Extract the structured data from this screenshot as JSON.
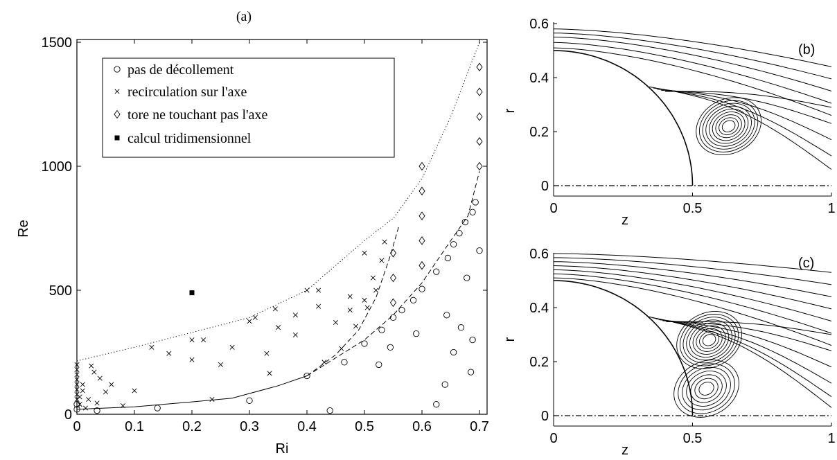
{
  "chart_data": [
    {
      "panel": "(a)",
      "type": "scatter",
      "title": "(a)",
      "xlabel": "Ri",
      "ylabel": "Re",
      "xlim": [
        0,
        0.7
      ],
      "ylim": [
        0,
        1500
      ],
      "xticks": [
        "0",
        "0.1",
        "0.2",
        "0.3",
        "0.4",
        "0.5",
        "0.6",
        "0.7"
      ],
      "yticks": [
        "0",
        "500",
        "1000",
        "1500"
      ],
      "legend_position": "top-left",
      "legend": [
        "pas de décollement",
        "recirculation sur l'axe",
        "tore ne touchant pas l'axe",
        "calcul tridimensionnel"
      ],
      "series": [
        {
          "name": "pas de décollement",
          "marker": "circle",
          "points": [
            [
              0,
              20
            ],
            [
              0,
              40
            ],
            [
              0.035,
              15
            ],
            [
              0.14,
              25
            ],
            [
              0.3,
              55
            ],
            [
              0.4,
              155
            ],
            [
              0.44,
              15
            ],
            [
              0.465,
              210
            ],
            [
              0.5,
              285
            ],
            [
              0.525,
              200
            ],
            [
              0.53,
              340
            ],
            [
              0.545,
              270
            ],
            [
              0.55,
              390
            ],
            [
              0.565,
              420
            ],
            [
              0.585,
              460
            ],
            [
              0.59,
              325
            ],
            [
              0.6,
              505
            ],
            [
              0.625,
              40
            ],
            [
              0.625,
              575
            ],
            [
              0.64,
              120
            ],
            [
              0.643,
              400
            ],
            [
              0.645,
              630
            ],
            [
              0.655,
              250
            ],
            [
              0.655,
              685
            ],
            [
              0.665,
              730
            ],
            [
              0.668,
              350
            ],
            [
              0.675,
              775
            ],
            [
              0.678,
              550
            ],
            [
              0.685,
              170
            ],
            [
              0.688,
              300
            ],
            [
              0.688,
              815
            ],
            [
              0.693,
              855
            ],
            [
              0.7,
              660
            ]
          ]
        },
        {
          "name": "recirculation sur l'axe",
          "marker": "x",
          "points": [
            [
              0,
              60
            ],
            [
              0,
              80
            ],
            [
              0,
              100
            ],
            [
              0,
              120
            ],
            [
              0,
              140
            ],
            [
              0,
              160
            ],
            [
              0,
              180
            ],
            [
              0,
              200
            ],
            [
              0.005,
              40
            ],
            [
              0.005,
              70
            ],
            [
              0.01,
              95
            ],
            [
              0.01,
              120
            ],
            [
              0.015,
              25
            ],
            [
              0.02,
              60
            ],
            [
              0.025,
              195
            ],
            [
              0.03,
              170
            ],
            [
              0.035,
              45
            ],
            [
              0.04,
              145
            ],
            [
              0.05,
              90
            ],
            [
              0.06,
              120
            ],
            [
              0.08,
              35
            ],
            [
              0.1,
              95
            ],
            [
              0.13,
              270
            ],
            [
              0.16,
              245
            ],
            [
              0.2,
              220
            ],
            [
              0.2,
              300
            ],
            [
              0.22,
              300
            ],
            [
              0.235,
              60
            ],
            [
              0.25,
              200
            ],
            [
              0.27,
              270
            ],
            [
              0.3,
              375
            ],
            [
              0.31,
              390
            ],
            [
              0.33,
              245
            ],
            [
              0.335,
              165
            ],
            [
              0.345,
              425
            ],
            [
              0.35,
              350
            ],
            [
              0.38,
              400
            ],
            [
              0.38,
              320
            ],
            [
              0.4,
              500
            ],
            [
              0.42,
              435
            ],
            [
              0.42,
              500
            ],
            [
              0.43,
              210
            ],
            [
              0.45,
              370
            ],
            [
              0.46,
              265
            ],
            [
              0.475,
              420
            ],
            [
              0.475,
              475
            ],
            [
              0.485,
              355
            ],
            [
              0.5,
              460
            ],
            [
              0.5,
              650
            ],
            [
              0.505,
              430
            ],
            [
              0.515,
              550
            ],
            [
              0.52,
              500
            ],
            [
              0.53,
              620
            ],
            [
              0.535,
              695
            ]
          ]
        },
        {
          "name": "tore ne touchant pas l'axe",
          "marker": "diamond",
          "points": [
            [
              0.55,
              450
            ],
            [
              0.55,
              550
            ],
            [
              0.55,
              650
            ],
            [
              0.6,
              600
            ],
            [
              0.6,
              700
            ],
            [
              0.6,
              800
            ],
            [
              0.6,
              900
            ],
            [
              0.6,
              1000
            ],
            [
              0.7,
              1000
            ],
            [
              0.7,
              1100
            ],
            [
              0.7,
              1200
            ],
            [
              0.7,
              1300
            ],
            [
              0.7,
              1400
            ]
          ]
        },
        {
          "name": "calcul tridimensionnel",
          "marker": "square",
          "points": [
            [
              0.2,
              490
            ]
          ]
        }
      ],
      "curves": [
        {
          "style": "solid",
          "points": [
            [
              0,
              20
            ],
            [
              0.1,
              30
            ],
            [
              0.2,
              50
            ],
            [
              0.27,
              65
            ],
            [
              0.35,
              115
            ],
            [
              0.4,
              155
            ]
          ]
        },
        {
          "style": "dashed",
          "points": [
            [
              0.4,
              155
            ],
            [
              0.45,
              240
            ],
            [
              0.49,
              340
            ],
            [
              0.52,
              470
            ],
            [
              0.545,
              640
            ],
            [
              0.56,
              760
            ]
          ]
        },
        {
          "style": "dashed",
          "points": [
            [
              0.4,
              155
            ],
            [
              0.5,
              300
            ],
            [
              0.55,
              400
            ],
            [
              0.6,
              530
            ],
            [
              0.65,
              700
            ],
            [
              0.68,
              800
            ],
            [
              0.7,
              980
            ]
          ]
        },
        {
          "style": "dotted",
          "points": [
            [
              0,
              215
            ],
            [
              0.1,
              270
            ],
            [
              0.2,
              330
            ],
            [
              0.3,
              390
            ],
            [
              0.4,
              500
            ],
            [
              0.5,
              700
            ],
            [
              0.55,
              790
            ],
            [
              0.6,
              950
            ],
            [
              0.65,
              1200
            ],
            [
              0.7,
              1500
            ]
          ]
        }
      ]
    },
    {
      "panel": "(b)",
      "type": "line",
      "title": "(b)",
      "xlabel": "z",
      "ylabel": "r",
      "xlim": [
        0,
        1
      ],
      "ylim": [
        0,
        0.6
      ],
      "xticks": [
        "0",
        "0.5",
        "1"
      ],
      "yticks": [
        "0",
        "0.2",
        "0.4",
        "0.6"
      ],
      "sphere_radius": 0.5,
      "outer_streamlines_r0": [
        0.51,
        0.53,
        0.55,
        0.565,
        0.58
      ],
      "outer_streamlines_r1": [
        0.06,
        0.11,
        0.17,
        0.23,
        0.29,
        0.35,
        0.41
      ],
      "vortices": [
        {
          "center": [
            0.63,
            0.22
          ],
          "loops": 9
        }
      ],
      "axis_line_r": 0
    },
    {
      "panel": "(c)",
      "type": "line",
      "title": "(c)",
      "xlabel": "z",
      "ylabel": "r",
      "xlim": [
        0,
        1
      ],
      "ylim": [
        0,
        0.6
      ],
      "xticks": [
        "0",
        "0.5",
        "1"
      ],
      "yticks": [
        "0",
        "0.2",
        "0.4",
        "0.6"
      ],
      "sphere_radius": 0.5,
      "outer_streamlines_r0": [
        0.51,
        0.525,
        0.54,
        0.555,
        0.57,
        0.585,
        0.6
      ],
      "outer_streamlines_r1": [
        0.03,
        0.07,
        0.12,
        0.18,
        0.24,
        0.3,
        0.37,
        0.43
      ],
      "vortices": [
        {
          "center": [
            0.56,
            0.28
          ],
          "loops": 9
        },
        {
          "center": [
            0.55,
            0.1
          ],
          "loops": 7
        }
      ],
      "axis_line_r": 0
    }
  ]
}
